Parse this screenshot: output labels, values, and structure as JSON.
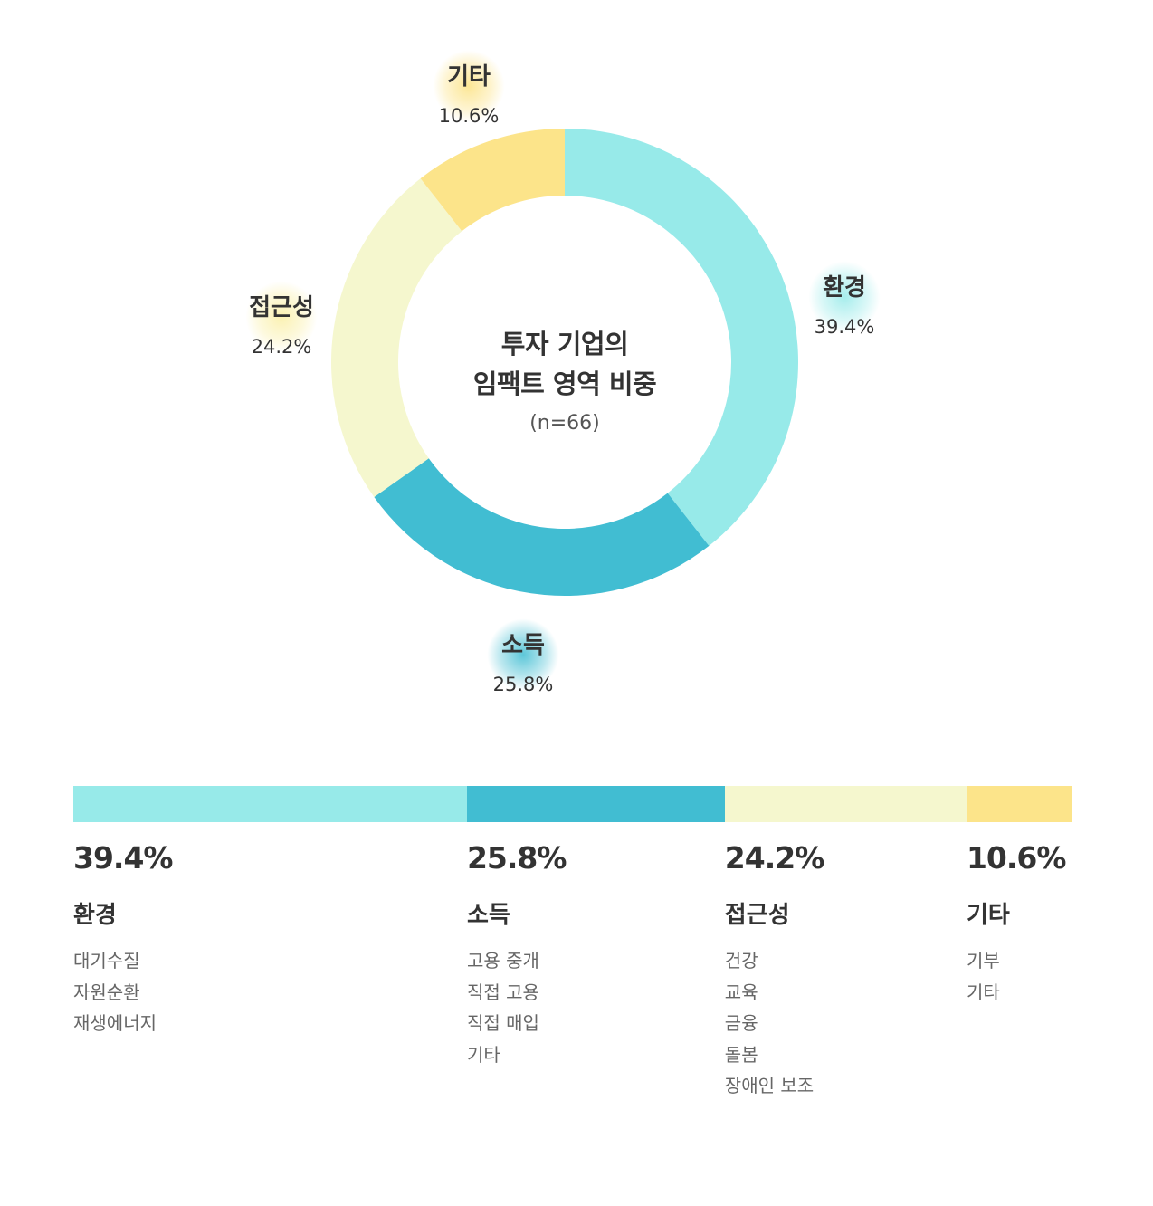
{
  "center": {
    "title_line1": "투자 기업의",
    "title_line2": "임팩트 영역 비중",
    "n": "(n=66)"
  },
  "chart_data": {
    "type": "pie",
    "categories": [
      "환경",
      "소득",
      "접근성",
      "기타"
    ],
    "values": [
      39.4,
      25.8,
      24.2,
      10.6
    ],
    "labels": [
      "39.4%",
      "25.8%",
      "24.2%",
      "10.6%"
    ],
    "colors": [
      "#97EAE9",
      "#41BDD2",
      "#F5F7CE",
      "#FCE48A"
    ],
    "title": "투자 기업의 임팩트 영역 비중"
  },
  "breakdown": [
    {
      "pct": "39.4%",
      "name": "환경",
      "items": [
        "대기수질",
        "자원순환",
        "재생에너지"
      ]
    },
    {
      "pct": "25.8%",
      "name": "소득",
      "items": [
        "고용 중개",
        "직접 고용",
        "직접 매입",
        "기타"
      ]
    },
    {
      "pct": "24.2%",
      "name": "접근성",
      "items": [
        "건강",
        "교육",
        "금융",
        "돌봄",
        "장애인 보조"
      ]
    },
    {
      "pct": "10.6%",
      "name": "기타",
      "items": [
        "기부",
        "기타"
      ]
    }
  ]
}
